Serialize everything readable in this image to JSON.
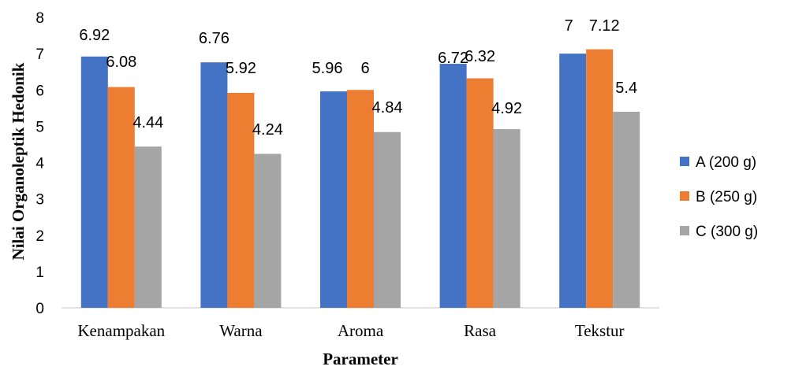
{
  "chart_data": {
    "type": "bar",
    "categories": [
      "Kenampakan",
      "Warna",
      "Aroma",
      "Rasa",
      "Tekstur"
    ],
    "series": [
      {
        "name": "A (200 g)",
        "values": [
          6.92,
          6.76,
          5.96,
          6.72,
          7
        ],
        "labels": [
          "6.92",
          "6.76",
          "5.96",
          "6.72",
          "7"
        ],
        "color": "#4472C4"
      },
      {
        "name": "B (250 g)",
        "values": [
          6.08,
          5.92,
          6,
          6.32,
          7.12
        ],
        "labels": [
          "6.08",
          "5.92",
          "6",
          "6.32",
          "7.12"
        ],
        "color": "#ED7D31"
      },
      {
        "name": "C (300 g)",
        "values": [
          4.44,
          4.24,
          4.84,
          4.92,
          5.4
        ],
        "labels": [
          "4.44",
          "4.24",
          "4.84",
          "4.92",
          "5.4"
        ],
        "color": "#A5A5A5"
      }
    ],
    "xlabel": "Parameter",
    "ylabel": "Nilai  Organoleptik  Hedonik",
    "ylim": [
      0,
      8
    ],
    "yticks": [
      "0",
      "1",
      "2",
      "3",
      "4",
      "5",
      "6",
      "7",
      "8"
    ],
    "grid": false,
    "legend_position": "right"
  }
}
